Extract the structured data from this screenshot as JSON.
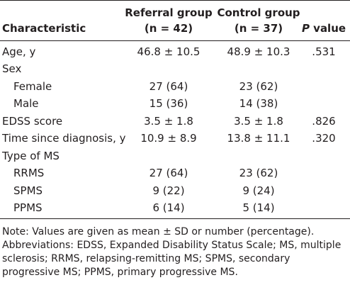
{
  "header": {
    "characteristic": "Characteristic",
    "referral_line1": "Referral group",
    "referral_line2": "(n = 42)",
    "control_line1": "Control group",
    "control_line2": "(n = 37)",
    "pvalue_italic": "P",
    "pvalue_rest": " value"
  },
  "rows": [
    {
      "label": "Age, y",
      "referral": "46.8 ± 10.5",
      "control": "48.9 ± 10.3",
      "p": ".531"
    },
    {
      "label": "Sex",
      "referral": "",
      "control": "",
      "p": ""
    },
    {
      "label": "Female",
      "referral": "27 (64)",
      "control": "23 (62)",
      "p": ""
    },
    {
      "label": "Male",
      "referral": "15 (36)",
      "control": "14 (38)",
      "p": ""
    },
    {
      "label": "EDSS score",
      "referral": "3.5 ± 1.8",
      "control": "3.5 ± 1.8",
      "p": ".826"
    },
    {
      "label": "Time since diagnosis, y",
      "referral": "10.9 ± 8.9",
      "control": "13.8 ± 11.1",
      "p": ".320"
    },
    {
      "label": "Type of MS",
      "referral": "",
      "control": "",
      "p": ""
    },
    {
      "label": "RRMS",
      "referral": "27 (64)",
      "control": "23 (62)",
      "p": ""
    },
    {
      "label": "SPMS",
      "referral": "9 (22)",
      "control": "9 (24)",
      "p": ""
    },
    {
      "label": "PPMS",
      "referral": "6 (14)",
      "control": "5 (14)",
      "p": ""
    }
  ],
  "notes": {
    "line1": "Note: Values are given as mean ± SD or number (percentage).",
    "line2": "Abbreviations: EDSS, Expanded Disability Status Scale; MS, multiple sclerosis; RRMS, relapsing-remitting MS; SPMS, secondary progressive MS; PPMS, primary progressive MS."
  }
}
